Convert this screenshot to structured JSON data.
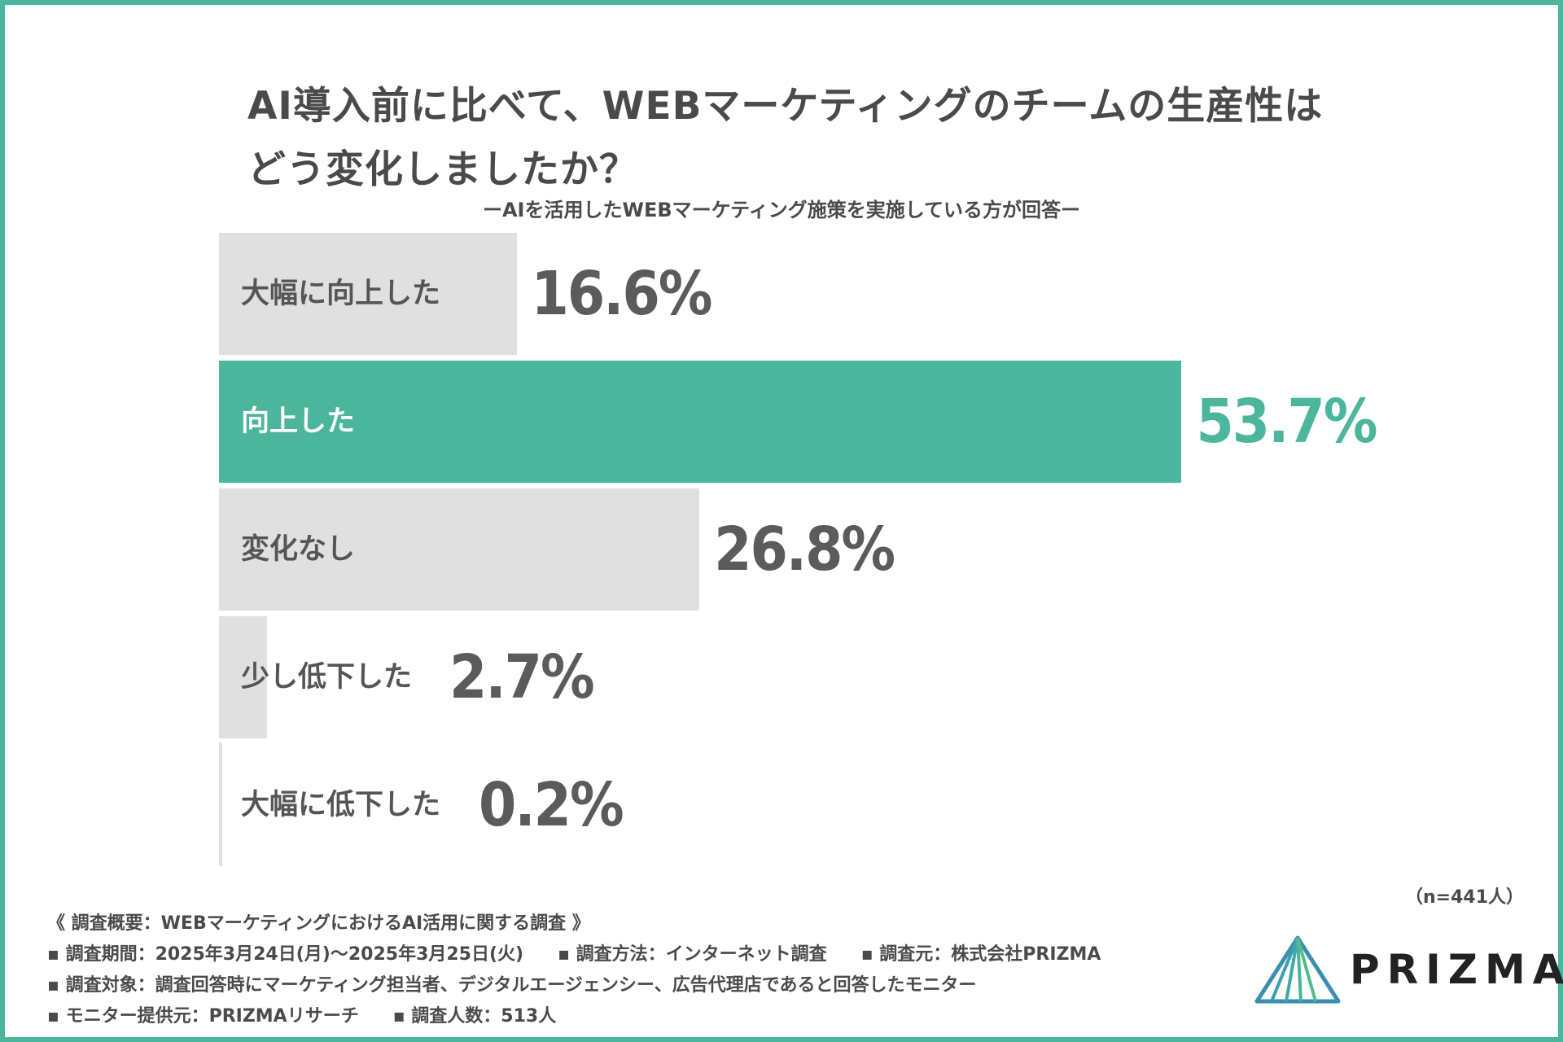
{
  "colors": {
    "accent": "#4bb69b",
    "bar_default": "#e0e0e0",
    "label_default": "#555555",
    "value_default": "#5b5b5b",
    "label_highlight": "#ffffff",
    "value_highlight": "#4bb69b"
  },
  "chart_data": {
    "type": "bar",
    "orientation": "horizontal",
    "title": "AI導入前に比べて、WEBマーケティングのチームの生産性はどう変化しましたか？",
    "title_lines": [
      "AI導入前に比べて、WEBマーケティングのチームの生産性は",
      "どう変化しましたか？"
    ],
    "subtitle": "ーAIを活用したWEBマーケティング施策を実施している方が回答ー",
    "categories": [
      "大幅に向上した",
      "向上した",
      "変化なし",
      "少し低下した",
      "大幅に低下した"
    ],
    "values": [
      16.6,
      53.7,
      26.8,
      2.7,
      0.2
    ],
    "value_labels": [
      "16.6%",
      "53.7%",
      "26.8%",
      "2.7%",
      "0.2%"
    ],
    "highlight_index": 1,
    "unit": "%",
    "xlim": [
      0,
      100
    ],
    "grid": false,
    "sample_size": "（n=441人）"
  },
  "footer": {
    "heading": "《 調査概要：WEBマーケティングにおけるAI活用に関する調査 》",
    "period": "▪ 調査期間：2025年3月24日(月)〜2025年3月25日(火)",
    "method": "▪ 調査方法：インターネット調査",
    "source": "▪ 調査元：株式会社PRIZMA",
    "target": "▪ 調査対象：調査回答時にマーケティング担当者、デジタルエージェンシー、広告代理店であると回答したモニター",
    "provider": "▪ モニター提供元：PRIZMAリサーチ",
    "count": "▪ 調査人数：513人"
  },
  "logo": {
    "text": "PRIZMA",
    "icon": "prism-triangle-icon"
  }
}
